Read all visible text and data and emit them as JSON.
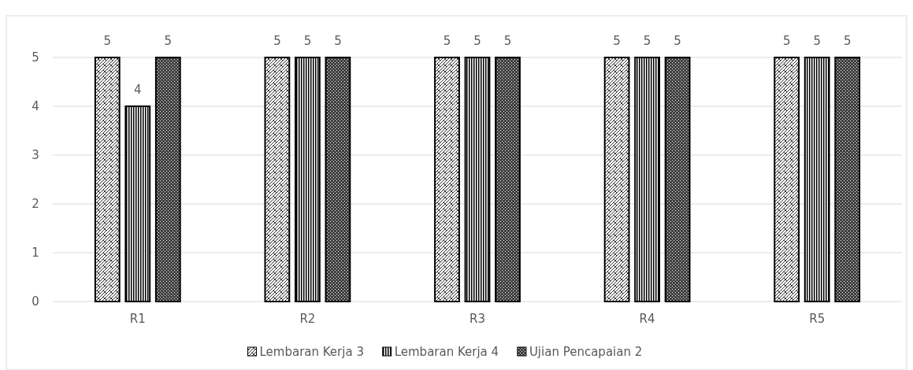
{
  "chart_data": {
    "type": "bar",
    "categories": [
      "R1",
      "R2",
      "R3",
      "R4",
      "R5"
    ],
    "series": [
      {
        "name": "Lembaran Kerja 3",
        "color": "#000000",
        "values": [
          5,
          5,
          5,
          5,
          5
        ]
      },
      {
        "name": "Lembaran Kerja 4",
        "color": "#000000",
        "values": [
          4,
          5,
          5,
          5,
          5
        ]
      },
      {
        "name": "Ujian Pencapaian 2",
        "color": "#000000",
        "values": [
          5,
          5,
          5,
          5,
          5
        ]
      }
    ],
    "ylim": [
      0,
      5
    ],
    "yticks": [
      0,
      1,
      2,
      3,
      4,
      5
    ],
    "grid": "y",
    "legend": "bottom",
    "data_labels": true
  }
}
